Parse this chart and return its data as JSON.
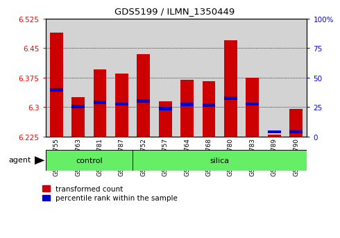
{
  "title": "GDS5199 / ILMN_1350449",
  "samples": [
    "GSM665755",
    "GSM665763",
    "GSM665781",
    "GSM665787",
    "GSM665752",
    "GSM665757",
    "GSM665764",
    "GSM665768",
    "GSM665780",
    "GSM665783",
    "GSM665789",
    "GSM665790"
  ],
  "groups": [
    "control",
    "control",
    "control",
    "control",
    "silica",
    "silica",
    "silica",
    "silica",
    "silica",
    "silica",
    "silica",
    "silica"
  ],
  "transformed_count": [
    6.49,
    6.325,
    6.395,
    6.385,
    6.435,
    6.315,
    6.37,
    6.365,
    6.47,
    6.375,
    6.23,
    6.295
  ],
  "percentile_rank": [
    0.395,
    0.255,
    0.29,
    0.275,
    0.3,
    0.235,
    0.27,
    0.265,
    0.325,
    0.275,
    0.04,
    0.04
  ],
  "ymin": 6.225,
  "ymax": 6.525,
  "yticks": [
    6.225,
    6.3,
    6.375,
    6.45,
    6.525
  ],
  "right_yticks": [
    0,
    25,
    50,
    75,
    100
  ],
  "bar_color": "#cc0000",
  "percentile_color": "#0000cc",
  "group_color": "#66ee66",
  "bg_color": "#d3d3d3",
  "legend_bar": "transformed count",
  "legend_pct": "percentile rank within the sample",
  "agent_label": "agent",
  "group_labels": [
    "control",
    "silica"
  ],
  "n_control": 4,
  "n_silica": 8
}
